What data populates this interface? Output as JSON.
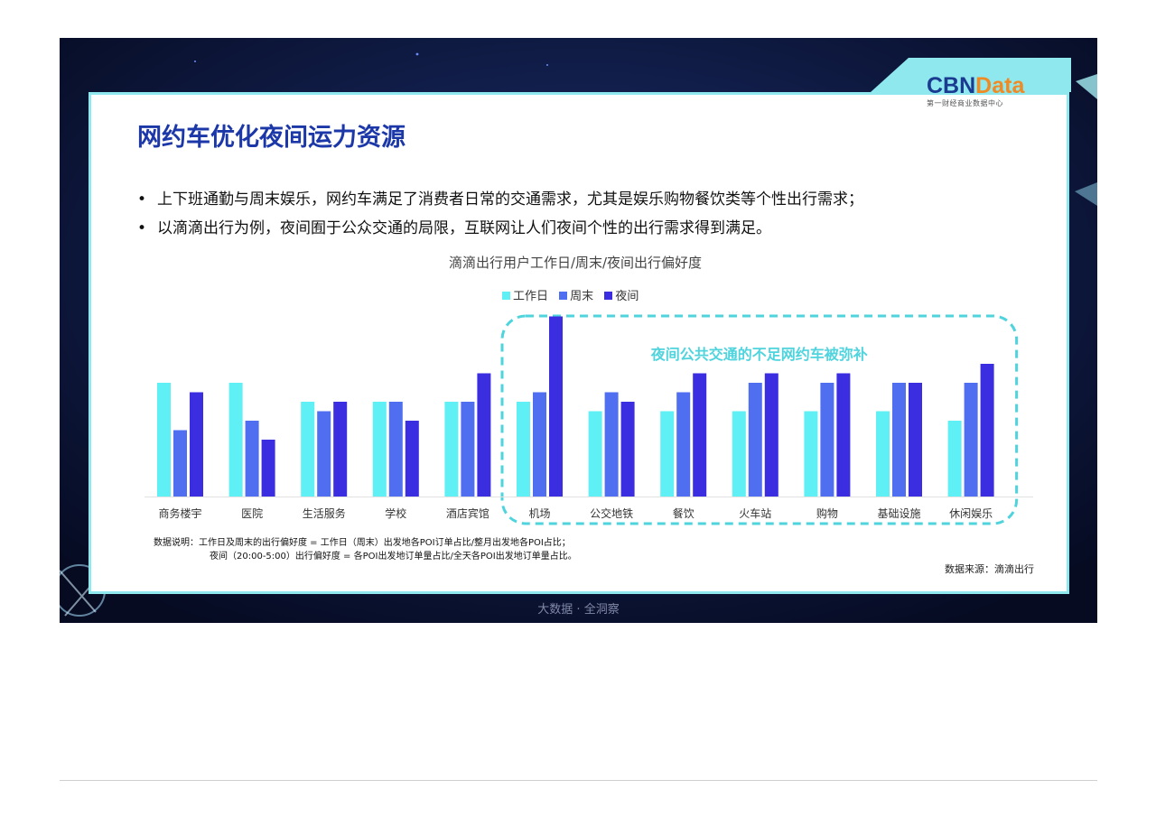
{
  "brand": {
    "name_part1": "CBN",
    "name_part2": "Data",
    "tagline": "第一财经商业数据中心"
  },
  "title": "网约车优化夜间运力资源",
  "bullets": [
    "上下班通勤与周末娱乐，网约车满足了消费者日常的交通需求，尤其是娱乐购物餐饮类等个性出行需求；",
    "以滴滴出行为例，夜间囿于公众交通的局限，互联网让人们夜间个性的出行需求得到满足。"
  ],
  "bullet_symbol": "•",
  "colors": {
    "workday": "#5ef0f5",
    "weekend": "#4f6ef0",
    "night": "#3a2ee0",
    "title": "#1b37a8",
    "highlight": "#4fd4de",
    "frame": "#8fe8ee"
  },
  "chart_data": {
    "type": "bar",
    "title": "滴滴出行用户工作日/周末/夜间出行偏好度",
    "categories": [
      "商务楼宇",
      "医院",
      "生活服务",
      "学校",
      "酒店宾馆",
      "机场",
      "公交地铁",
      "餐饮",
      "火车站",
      "购物",
      "基础设施",
      "休闲娱乐"
    ],
    "series": [
      {
        "name": "工作日",
        "values": [
          1.2,
          1.2,
          1.0,
          1.0,
          1.0,
          1.0,
          0.9,
          0.9,
          0.9,
          0.9,
          0.9,
          0.8
        ]
      },
      {
        "name": "周末",
        "values": [
          0.7,
          0.8,
          0.9,
          1.0,
          1.0,
          1.1,
          1.1,
          1.1,
          1.2,
          1.2,
          1.2,
          1.2
        ]
      },
      {
        "name": "夜间",
        "values": [
          1.1,
          0.6,
          1.0,
          0.8,
          1.3,
          1.9,
          1.0,
          1.3,
          1.3,
          1.3,
          1.2,
          1.4
        ]
      }
    ],
    "ylim": [
      0,
      2.0
    ],
    "grid": false,
    "legend_position": "top-center",
    "annotation": {
      "text": "夜间公共交通的不足网约车被弥补",
      "from_category": "机场",
      "to_category": "休闲娱乐"
    }
  },
  "note_lines": [
    "数据说明：工作日及周末的出行偏好度 = 工作日（周末）出发地各POI订单占比/整月出发地各POI占比；",
    "夜间（20:00-5:00）出行偏好度 = 各POI出发地订单量占比/全天各POI出发地订单量占比。"
  ],
  "source": "数据来源：滴滴出行",
  "footer": "大数据 · 全洞察"
}
